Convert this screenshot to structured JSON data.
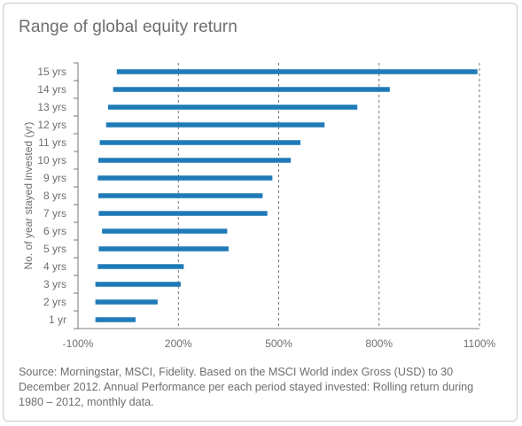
{
  "title": "Range of global equity return",
  "source": "Source: Morningstar, MSCI, Fidelity. Based on the MSCI World index Gross (USD) to 30 December 2012. Annual Performance per each period stayed invested: Rolling return during 1980 – 2012, monthly data.",
  "colors": {
    "bar": "#1f7ab8",
    "text": "#6e6e6e",
    "grid": "#555555"
  },
  "chart_data": {
    "type": "bar",
    "orientation": "horizontal",
    "title": "Range of global equity return",
    "ylabel": "No. of year stayed invested (yr)",
    "xlabel": "",
    "xlim": [
      -100,
      1100
    ],
    "xticks": [
      -100,
      200,
      500,
      800,
      1100
    ],
    "xtick_labels": [
      "-100%",
      "200%",
      "500%",
      "800%",
      "1100%"
    ],
    "grid": "vertical dashed",
    "categories": [
      "1 yr",
      "2 yrs",
      "3 yrs",
      "4 yrs",
      "5 yrs",
      "6 yrs",
      "7 yrs",
      "8 yrs",
      "9 yrs",
      "10 yrs",
      "11 yrs",
      "12 yrs",
      "13 yrs",
      "14 yrs",
      "15 yrs"
    ],
    "ranges": [
      [
        -48,
        72
      ],
      [
        -48,
        138
      ],
      [
        -48,
        207
      ],
      [
        -41,
        216
      ],
      [
        -38,
        350
      ],
      [
        -28,
        346
      ],
      [
        -38,
        466
      ],
      [
        -39,
        452
      ],
      [
        -41,
        481
      ],
      [
        -39,
        536
      ],
      [
        -35,
        565
      ],
      [
        -16,
        637
      ],
      [
        -10,
        735
      ],
      [
        5,
        832
      ],
      [
        16,
        1094
      ]
    ]
  }
}
